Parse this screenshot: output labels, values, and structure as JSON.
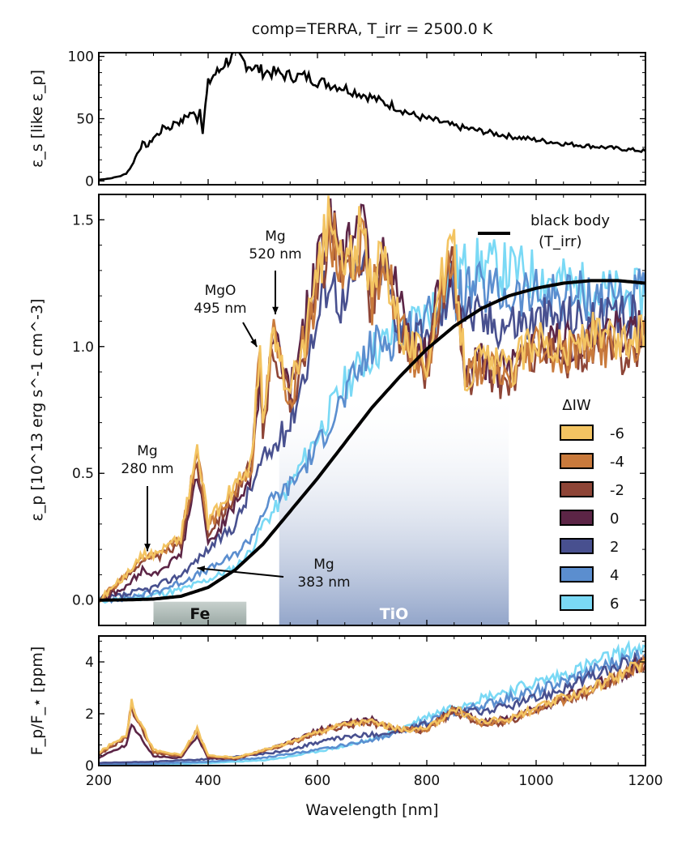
{
  "title": "comp=TERRA, T_irr = 2500.0 K",
  "xlabel": "Wavelength [nm]",
  "xticks": [
    200,
    400,
    600,
    800,
    1000,
    1200
  ],
  "chart_data": [
    {
      "id": "top",
      "type": "line",
      "ylabel": "ε_s [like ε_p]",
      "xlim": [
        200,
        1200
      ],
      "ylim": [
        -3,
        103
      ],
      "yticks": [
        0,
        50,
        100
      ],
      "series": [
        {
          "name": "eps_s",
          "color": "#000000",
          "x": [
            200,
            220,
            240,
            250,
            260,
            270,
            280,
            290,
            300,
            310,
            320,
            330,
            340,
            350,
            360,
            370,
            380,
            385,
            390,
            395,
            400,
            410,
            420,
            430,
            440,
            450,
            460,
            470,
            480,
            490,
            500,
            520,
            540,
            560,
            580,
            600,
            620,
            640,
            660,
            680,
            700,
            720,
            740,
            760,
            780,
            800,
            820,
            850,
            900,
            950,
            1000,
            1050,
            1100,
            1150,
            1200
          ],
          "y": [
            1,
            2,
            4,
            6,
            12,
            22,
            30,
            28,
            35,
            38,
            44,
            42,
            48,
            47,
            52,
            55,
            50,
            58,
            40,
            60,
            78,
            85,
            88,
            95,
            98,
            100,
            98,
            94,
            92,
            90,
            88,
            87,
            85,
            84,
            84,
            80,
            78,
            76,
            73,
            70,
            67,
            63,
            60,
            56,
            52,
            50,
            48,
            44,
            40,
            36,
            33,
            30,
            28,
            26,
            24
          ]
        }
      ]
    },
    {
      "id": "main",
      "type": "line",
      "ylabel": "ε_p [10^13 erg s^-1 cm^-3]",
      "xlim": [
        200,
        1200
      ],
      "ylim": [
        -0.1,
        1.6
      ],
      "yticks": [
        0.0,
        0.5,
        1.0,
        1.5
      ],
      "yticklabels": [
        "0.0",
        "0.5",
        "1.0",
        "1.5"
      ],
      "bands": [
        {
          "label": "Fe",
          "x0": 300,
          "x1": 470
        },
        {
          "label": "TiO",
          "x0": 530,
          "x1": 950
        }
      ],
      "legend_title": "ΔIW",
      "blackbody_label": "black body",
      "blackbody_sublabel": "(T_irr)",
      "blackbody": {
        "x": [
          200,
          250,
          300,
          350,
          400,
          450,
          500,
          550,
          600,
          650,
          700,
          750,
          800,
          850,
          900,
          950,
          1000,
          1050,
          1100,
          1150,
          1200
        ],
        "y": [
          0.0,
          0.001,
          0.004,
          0.015,
          0.05,
          0.12,
          0.22,
          0.35,
          0.48,
          0.62,
          0.76,
          0.88,
          0.99,
          1.08,
          1.15,
          1.2,
          1.23,
          1.25,
          1.26,
          1.26,
          1.25
        ]
      },
      "series": [
        {
          "name": "-6",
          "color": "#f3c462",
          "scale": 1.03,
          "x": [
            200,
            250,
            280,
            300,
            350,
            380,
            400,
            450,
            480,
            495,
            500,
            520,
            550,
            600,
            620,
            650,
            680,
            700,
            720,
            750,
            770,
            800,
            820,
            850,
            870,
            900,
            950,
            1000,
            1050,
            1100,
            1150,
            1200
          ],
          "y": [
            0.0,
            0.1,
            0.18,
            0.18,
            0.25,
            0.6,
            0.3,
            0.45,
            0.55,
            0.98,
            0.7,
            1.05,
            0.8,
            1.25,
            1.5,
            1.3,
            1.45,
            1.2,
            1.4,
            1.1,
            1.0,
            0.95,
            1.2,
            1.38,
            0.9,
            0.95,
            0.9,
            1.05,
            0.98,
            1.05,
            1.0,
            1.05
          ]
        },
        {
          "name": "-4",
          "color": "#c97a3c",
          "scale": 1.02,
          "x": [
            200,
            250,
            280,
            300,
            350,
            380,
            400,
            450,
            480,
            495,
            500,
            520,
            550,
            600,
            620,
            650,
            680,
            700,
            720,
            750,
            770,
            800,
            820,
            850,
            870,
            900,
            950,
            1000,
            1050,
            1100,
            1150,
            1200
          ],
          "y": [
            0.0,
            0.1,
            0.17,
            0.17,
            0.24,
            0.58,
            0.29,
            0.44,
            0.54,
            0.97,
            0.69,
            1.04,
            0.79,
            1.23,
            1.48,
            1.28,
            1.42,
            1.18,
            1.38,
            1.08,
            0.98,
            0.92,
            1.17,
            1.35,
            0.88,
            0.93,
            0.87,
            1.02,
            0.96,
            1.02,
            0.98,
            1.03
          ]
        },
        {
          "name": "-2",
          "color": "#8e4537",
          "scale": 1.0,
          "x": [
            200,
            250,
            280,
            300,
            350,
            380,
            400,
            450,
            480,
            495,
            500,
            520,
            550,
            600,
            620,
            650,
            680,
            700,
            720,
            750,
            770,
            800,
            820,
            850,
            870,
            900,
            950,
            1000,
            1050,
            1100,
            1150,
            1200
          ],
          "y": [
            0.0,
            0.09,
            0.16,
            0.16,
            0.22,
            0.55,
            0.27,
            0.42,
            0.52,
            0.95,
            0.67,
            1.02,
            0.77,
            1.2,
            1.45,
            1.25,
            1.4,
            1.15,
            1.35,
            1.05,
            0.95,
            0.9,
            1.15,
            1.32,
            0.85,
            0.9,
            0.85,
            1.0,
            0.95,
            1.0,
            0.97,
            1.0
          ]
        },
        {
          "name": "0",
          "color": "#5c2546",
          "scale": 1.0,
          "x": [
            200,
            250,
            280,
            300,
            350,
            380,
            400,
            450,
            480,
            495,
            500,
            520,
            550,
            600,
            620,
            650,
            680,
            700,
            720,
            750,
            770,
            800,
            820,
            850,
            870,
            900,
            950,
            1000,
            1050,
            1100,
            1150,
            1200
          ],
          "y": [
            0.0,
            0.05,
            0.12,
            0.1,
            0.18,
            0.5,
            0.22,
            0.38,
            0.5,
            0.9,
            0.7,
            1.05,
            0.85,
            1.3,
            1.55,
            1.35,
            1.6,
            1.25,
            1.45,
            1.15,
            1.0,
            0.95,
            1.2,
            1.35,
            0.9,
            0.95,
            0.9,
            1.05,
            1.0,
            1.05,
            1.05,
            1.05
          ]
        },
        {
          "name": "2",
          "color": "#48508f",
          "scale": 1.0,
          "x": [
            200,
            250,
            300,
            350,
            400,
            450,
            480,
            500,
            520,
            550,
            600,
            620,
            650,
            680,
            700,
            720,
            750,
            770,
            800,
            820,
            850,
            870,
            900,
            950,
            1000,
            1050,
            1100,
            1150,
            1200
          ],
          "y": [
            0.0,
            0.02,
            0.05,
            0.1,
            0.2,
            0.3,
            0.45,
            0.55,
            0.6,
            0.7,
            1.1,
            1.3,
            1.15,
            1.35,
            1.2,
            1.3,
            1.1,
            1.05,
            1.0,
            1.1,
            1.25,
            1.15,
            1.1,
            1.1,
            1.1,
            1.12,
            1.1,
            1.1,
            1.12
          ]
        },
        {
          "name": "4",
          "color": "#5b8ecf",
          "scale": 1.0,
          "x": [
            200,
            250,
            300,
            350,
            400,
            450,
            480,
            500,
            520,
            550,
            600,
            620,
            650,
            700,
            750,
            800,
            850,
            900,
            950,
            1000,
            1050,
            1100,
            1150,
            1200
          ],
          "y": [
            0.0,
            0.01,
            0.03,
            0.07,
            0.12,
            0.18,
            0.25,
            0.35,
            0.4,
            0.45,
            0.6,
            0.7,
            0.8,
            1.0,
            1.05,
            1.1,
            1.2,
            1.22,
            1.2,
            1.2,
            1.2,
            1.2,
            1.2,
            1.2
          ]
        },
        {
          "name": "6",
          "color": "#7ad9f5",
          "scale": 1.0,
          "x": [
            200,
            250,
            300,
            350,
            400,
            450,
            480,
            500,
            520,
            550,
            600,
            650,
            700,
            750,
            800,
            850,
            900,
            950,
            1000,
            1050,
            1100,
            1150,
            1200
          ],
          "y": [
            0.0,
            0.005,
            0.02,
            0.04,
            0.08,
            0.13,
            0.2,
            0.3,
            0.35,
            0.45,
            0.65,
            0.85,
            0.98,
            1.05,
            1.12,
            1.3,
            1.32,
            1.3,
            1.28,
            1.25,
            1.22,
            1.2,
            1.2
          ]
        }
      ],
      "annotations": [
        {
          "label": "Mg\n280 nm",
          "x": 280,
          "y": 0.18
        },
        {
          "label": "MgO\n495 nm",
          "x": 495,
          "y": 0.98
        },
        {
          "label": "Mg\n520 nm",
          "x": 520,
          "y": 1.12
        },
        {
          "label": "Mg\n383 nm",
          "x": 383,
          "y": 0.12
        }
      ]
    },
    {
      "id": "bottom",
      "type": "line",
      "ylabel": "F_p/F_⋆ [ppm]",
      "xlim": [
        200,
        1200
      ],
      "ylim": [
        0,
        5
      ],
      "yticks": [
        0,
        2,
        4
      ],
      "series_from": "main",
      "series": [
        {
          "name": "-6",
          "color": "#f3c462",
          "x": [
            200,
            250,
            260,
            280,
            300,
            350,
            380,
            400,
            450,
            500,
            550,
            600,
            650,
            700,
            750,
            800,
            850,
            900,
            950,
            1000,
            1050,
            1100,
            1150,
            1200
          ],
          "y": [
            0.5,
            1.2,
            2.4,
            1.5,
            0.6,
            0.4,
            1.4,
            0.4,
            0.3,
            0.6,
            0.9,
            1.3,
            1.6,
            1.7,
            1.4,
            1.4,
            2.2,
            1.7,
            1.8,
            2.2,
            2.6,
            3.0,
            3.5,
            4.0
          ]
        },
        {
          "name": "-4",
          "color": "#c97a3c",
          "x": [
            200,
            250,
            260,
            280,
            300,
            350,
            380,
            400,
            450,
            500,
            550,
            600,
            650,
            700,
            750,
            800,
            850,
            900,
            950,
            1000,
            1050,
            1100,
            1150,
            1200
          ],
          "y": [
            0.45,
            1.15,
            2.3,
            1.45,
            0.55,
            0.38,
            1.35,
            0.38,
            0.28,
            0.58,
            0.88,
            1.28,
            1.58,
            1.68,
            1.38,
            1.38,
            2.15,
            1.65,
            1.75,
            2.15,
            2.55,
            2.95,
            3.45,
            3.95
          ]
        },
        {
          "name": "-2",
          "color": "#8e4537",
          "x": [
            200,
            250,
            260,
            280,
            300,
            350,
            380,
            400,
            450,
            500,
            550,
            600,
            650,
            700,
            750,
            800,
            850,
            900,
            950,
            1000,
            1050,
            1100,
            1150,
            1200
          ],
          "y": [
            0.4,
            1.1,
            2.2,
            1.4,
            0.5,
            0.35,
            1.3,
            0.35,
            0.25,
            0.55,
            0.85,
            1.25,
            1.55,
            1.65,
            1.35,
            1.35,
            2.1,
            1.6,
            1.7,
            2.1,
            2.5,
            2.9,
            3.4,
            3.9
          ]
        },
        {
          "name": "0",
          "color": "#5c2546",
          "x": [
            200,
            250,
            260,
            280,
            300,
            350,
            380,
            400,
            450,
            500,
            550,
            600,
            650,
            700,
            750,
            800,
            850,
            900,
            950,
            1000,
            1050,
            1100,
            1150,
            1200
          ],
          "y": [
            0.3,
            0.8,
            1.6,
            1.0,
            0.35,
            0.3,
            1.1,
            0.3,
            0.25,
            0.55,
            0.9,
            1.35,
            1.65,
            1.75,
            1.4,
            1.4,
            2.2,
            1.7,
            1.8,
            2.2,
            2.6,
            3.0,
            3.5,
            4.0
          ]
        },
        {
          "name": "2",
          "color": "#48508f",
          "x": [
            200,
            300,
            400,
            500,
            550,
            600,
            650,
            700,
            750,
            800,
            850,
            900,
            950,
            1000,
            1050,
            1100,
            1150,
            1200
          ],
          "y": [
            0.1,
            0.15,
            0.25,
            0.45,
            0.6,
            0.9,
            1.1,
            1.2,
            1.3,
            1.6,
            2.0,
            2.1,
            2.3,
            2.6,
            3.0,
            3.4,
            3.8,
            4.2
          ]
        },
        {
          "name": "4",
          "color": "#5b8ecf",
          "x": [
            200,
            300,
            400,
            500,
            550,
            600,
            650,
            700,
            750,
            800,
            850,
            900,
            950,
            1000,
            1050,
            1100,
            1150,
            1200
          ],
          "y": [
            0.05,
            0.08,
            0.15,
            0.3,
            0.45,
            0.6,
            0.8,
            1.0,
            1.3,
            1.7,
            2.1,
            2.3,
            2.6,
            2.9,
            3.2,
            3.6,
            4.0,
            4.3
          ]
        },
        {
          "name": "6",
          "color": "#7ad9f5",
          "x": [
            200,
            300,
            400,
            500,
            550,
            600,
            650,
            700,
            750,
            800,
            850,
            900,
            950,
            1000,
            1050,
            1100,
            1150,
            1200
          ],
          "y": [
            0.02,
            0.05,
            0.1,
            0.2,
            0.35,
            0.55,
            0.75,
            1.0,
            1.4,
            1.9,
            2.3,
            2.6,
            2.9,
            3.2,
            3.5,
            3.9,
            4.3,
            4.6
          ]
        }
      ]
    }
  ]
}
